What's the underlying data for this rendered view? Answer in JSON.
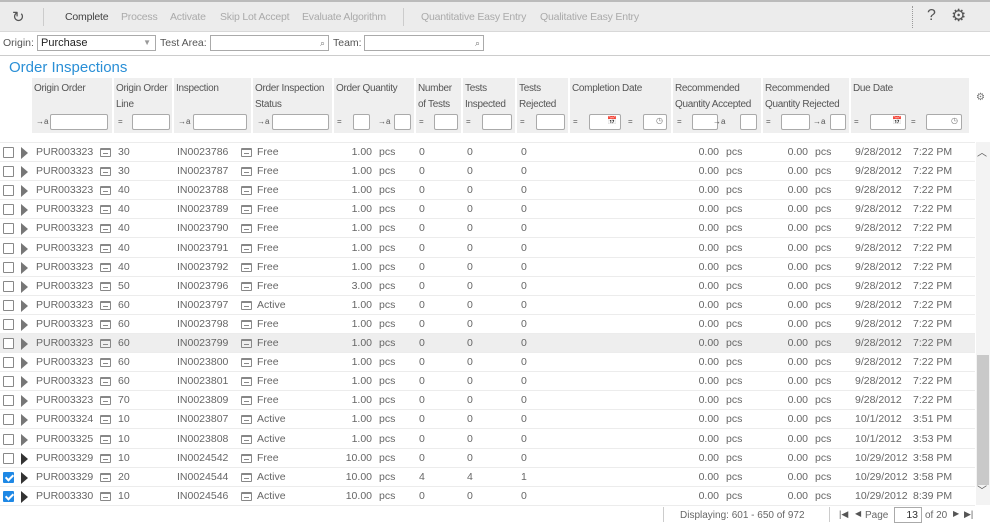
{
  "toolbar": {
    "refresh_icon": "refresh-icon",
    "actions": [
      "Complete",
      "Process",
      "Activate",
      "Skip Lot Accept",
      "Evaluate Algorithm",
      "Quantitative Easy Entry",
      "Qualitative Easy Entry"
    ],
    "help": "?",
    "settings_icon": "gear-icon"
  },
  "filters": {
    "origin_label": "Origin:",
    "origin_value": "Purchase",
    "test_area_label": "Test Area:",
    "test_area_value": "",
    "team_label": "Team:",
    "team_value": ""
  },
  "grid": {
    "title": "Order Inspections",
    "columns": [
      "Origin Order",
      "Origin Order Line",
      "Inspection",
      "Order Inspection Status",
      "Order Quantity",
      "Number of Tests",
      "Tests Inspected",
      "Tests Rejected",
      "Completion Date",
      "Recommended Quantity Accepted",
      "Recommended Quantity Rejected",
      "Due Date"
    ],
    "rows": [
      {
        "checked": false,
        "order": "PUR003323",
        "line": "30",
        "inspection": "IN0023786",
        "status": "Free",
        "qty": "1.00",
        "unit": "pcs",
        "tests": "0",
        "inspected": "0",
        "rejected": "0",
        "rec_acc": "0.00",
        "rec_acc_unit": "pcs",
        "rec_rej": "0.00",
        "rec_rej_unit": "pcs",
        "due_date": "9/28/2012",
        "due_time": "7:22 PM"
      },
      {
        "checked": false,
        "order": "PUR003323",
        "line": "30",
        "inspection": "IN0023787",
        "status": "Free",
        "qty": "1.00",
        "unit": "pcs",
        "tests": "0",
        "inspected": "0",
        "rejected": "0",
        "rec_acc": "0.00",
        "rec_acc_unit": "pcs",
        "rec_rej": "0.00",
        "rec_rej_unit": "pcs",
        "due_date": "9/28/2012",
        "due_time": "7:22 PM"
      },
      {
        "checked": false,
        "order": "PUR003323",
        "line": "40",
        "inspection": "IN0023788",
        "status": "Free",
        "qty": "1.00",
        "unit": "pcs",
        "tests": "0",
        "inspected": "0",
        "rejected": "0",
        "rec_acc": "0.00",
        "rec_acc_unit": "pcs",
        "rec_rej": "0.00",
        "rec_rej_unit": "pcs",
        "due_date": "9/28/2012",
        "due_time": "7:22 PM"
      },
      {
        "checked": false,
        "order": "PUR003323",
        "line": "40",
        "inspection": "IN0023789",
        "status": "Free",
        "qty": "1.00",
        "unit": "pcs",
        "tests": "0",
        "inspected": "0",
        "rejected": "0",
        "rec_acc": "0.00",
        "rec_acc_unit": "pcs",
        "rec_rej": "0.00",
        "rec_rej_unit": "pcs",
        "due_date": "9/28/2012",
        "due_time": "7:22 PM"
      },
      {
        "checked": false,
        "order": "PUR003323",
        "line": "40",
        "inspection": "IN0023790",
        "status": "Free",
        "qty": "1.00",
        "unit": "pcs",
        "tests": "0",
        "inspected": "0",
        "rejected": "0",
        "rec_acc": "0.00",
        "rec_acc_unit": "pcs",
        "rec_rej": "0.00",
        "rec_rej_unit": "pcs",
        "due_date": "9/28/2012",
        "due_time": "7:22 PM"
      },
      {
        "checked": false,
        "order": "PUR003323",
        "line": "40",
        "inspection": "IN0023791",
        "status": "Free",
        "qty": "1.00",
        "unit": "pcs",
        "tests": "0",
        "inspected": "0",
        "rejected": "0",
        "rec_acc": "0.00",
        "rec_acc_unit": "pcs",
        "rec_rej": "0.00",
        "rec_rej_unit": "pcs",
        "due_date": "9/28/2012",
        "due_time": "7:22 PM"
      },
      {
        "checked": false,
        "order": "PUR003323",
        "line": "40",
        "inspection": "IN0023792",
        "status": "Free",
        "qty": "1.00",
        "unit": "pcs",
        "tests": "0",
        "inspected": "0",
        "rejected": "0",
        "rec_acc": "0.00",
        "rec_acc_unit": "pcs",
        "rec_rej": "0.00",
        "rec_rej_unit": "pcs",
        "due_date": "9/28/2012",
        "due_time": "7:22 PM"
      },
      {
        "checked": false,
        "order": "PUR003323",
        "line": "50",
        "inspection": "IN0023796",
        "status": "Free",
        "qty": "3.00",
        "unit": "pcs",
        "tests": "0",
        "inspected": "0",
        "rejected": "0",
        "rec_acc": "0.00",
        "rec_acc_unit": "pcs",
        "rec_rej": "0.00",
        "rec_rej_unit": "pcs",
        "due_date": "9/28/2012",
        "due_time": "7:22 PM"
      },
      {
        "checked": false,
        "order": "PUR003323",
        "line": "60",
        "inspection": "IN0023797",
        "status": "Active",
        "qty": "1.00",
        "unit": "pcs",
        "tests": "0",
        "inspected": "0",
        "rejected": "0",
        "rec_acc": "0.00",
        "rec_acc_unit": "pcs",
        "rec_rej": "0.00",
        "rec_rej_unit": "pcs",
        "due_date": "9/28/2012",
        "due_time": "7:22 PM"
      },
      {
        "checked": false,
        "order": "PUR003323",
        "line": "60",
        "inspection": "IN0023798",
        "status": "Free",
        "qty": "1.00",
        "unit": "pcs",
        "tests": "0",
        "inspected": "0",
        "rejected": "0",
        "rec_acc": "0.00",
        "rec_acc_unit": "pcs",
        "rec_rej": "0.00",
        "rec_rej_unit": "pcs",
        "due_date": "9/28/2012",
        "due_time": "7:22 PM"
      },
      {
        "checked": false,
        "highlighted": true,
        "order": "PUR003323",
        "line": "60",
        "inspection": "IN0023799",
        "status": "Free",
        "qty": "1.00",
        "unit": "pcs",
        "tests": "0",
        "inspected": "0",
        "rejected": "0",
        "rec_acc": "0.00",
        "rec_acc_unit": "pcs",
        "rec_rej": "0.00",
        "rec_rej_unit": "pcs",
        "due_date": "9/28/2012",
        "due_time": "7:22 PM"
      },
      {
        "checked": false,
        "order": "PUR003323",
        "line": "60",
        "inspection": "IN0023800",
        "status": "Free",
        "qty": "1.00",
        "unit": "pcs",
        "tests": "0",
        "inspected": "0",
        "rejected": "0",
        "rec_acc": "0.00",
        "rec_acc_unit": "pcs",
        "rec_rej": "0.00",
        "rec_rej_unit": "pcs",
        "due_date": "9/28/2012",
        "due_time": "7:22 PM"
      },
      {
        "checked": false,
        "order": "PUR003323",
        "line": "60",
        "inspection": "IN0023801",
        "status": "Free",
        "qty": "1.00",
        "unit": "pcs",
        "tests": "0",
        "inspected": "0",
        "rejected": "0",
        "rec_acc": "0.00",
        "rec_acc_unit": "pcs",
        "rec_rej": "0.00",
        "rec_rej_unit": "pcs",
        "due_date": "9/28/2012",
        "due_time": "7:22 PM"
      },
      {
        "checked": false,
        "order": "PUR003323",
        "line": "70",
        "inspection": "IN0023809",
        "status": "Free",
        "qty": "1.00",
        "unit": "pcs",
        "tests": "0",
        "inspected": "0",
        "rejected": "0",
        "rec_acc": "0.00",
        "rec_acc_unit": "pcs",
        "rec_rej": "0.00",
        "rec_rej_unit": "pcs",
        "due_date": "9/28/2012",
        "due_time": "7:22 PM"
      },
      {
        "checked": false,
        "order": "PUR003324",
        "line": "10",
        "inspection": "IN0023807",
        "status": "Active",
        "qty": "1.00",
        "unit": "pcs",
        "tests": "0",
        "inspected": "0",
        "rejected": "0",
        "rec_acc": "0.00",
        "rec_acc_unit": "pcs",
        "rec_rej": "0.00",
        "rec_rej_unit": "pcs",
        "due_date": "10/1/2012",
        "due_time": "3:51 PM"
      },
      {
        "checked": false,
        "order": "PUR003325",
        "line": "10",
        "inspection": "IN0023808",
        "status": "Active",
        "qty": "1.00",
        "unit": "pcs",
        "tests": "0",
        "inspected": "0",
        "rejected": "0",
        "rec_acc": "0.00",
        "rec_acc_unit": "pcs",
        "rec_rej": "0.00",
        "rec_rej_unit": "pcs",
        "due_date": "10/1/2012",
        "due_time": "3:53 PM"
      },
      {
        "checked": false,
        "order": "PUR003329",
        "line": "10",
        "inspection": "IN0024542",
        "status": "Free",
        "qty": "10.00",
        "unit": "pcs",
        "tests": "0",
        "inspected": "0",
        "rejected": "0",
        "rec_acc": "0.00",
        "rec_acc_unit": "pcs",
        "rec_rej": "0.00",
        "rec_rej_unit": "pcs",
        "due_date": "10/29/2012",
        "due_time": "3:58 PM"
      },
      {
        "checked": true,
        "order": "PUR003329",
        "line": "20",
        "inspection": "IN0024544",
        "status": "Active",
        "qty": "10.00",
        "unit": "pcs",
        "tests": "4",
        "inspected": "4",
        "rejected": "1",
        "rec_acc": "0.00",
        "rec_acc_unit": "pcs",
        "rec_rej": "0.00",
        "rec_rej_unit": "pcs",
        "due_date": "10/29/2012",
        "due_time": "3:58 PM"
      },
      {
        "checked": true,
        "order": "PUR003330",
        "line": "10",
        "inspection": "IN0024546",
        "status": "Active",
        "qty": "10.00",
        "unit": "pcs",
        "tests": "0",
        "inspected": "0",
        "rejected": "0",
        "rec_acc": "0.00",
        "rec_acc_unit": "pcs",
        "rec_rej": "0.00",
        "rec_rej_unit": "pcs",
        "due_date": "10/29/2012",
        "due_time": "8:39 PM"
      }
    ]
  },
  "pager": {
    "displaying": "Displaying: 601 - 650 of 972",
    "page_label": "Page",
    "page_value": "13",
    "of_label": "of 20"
  }
}
